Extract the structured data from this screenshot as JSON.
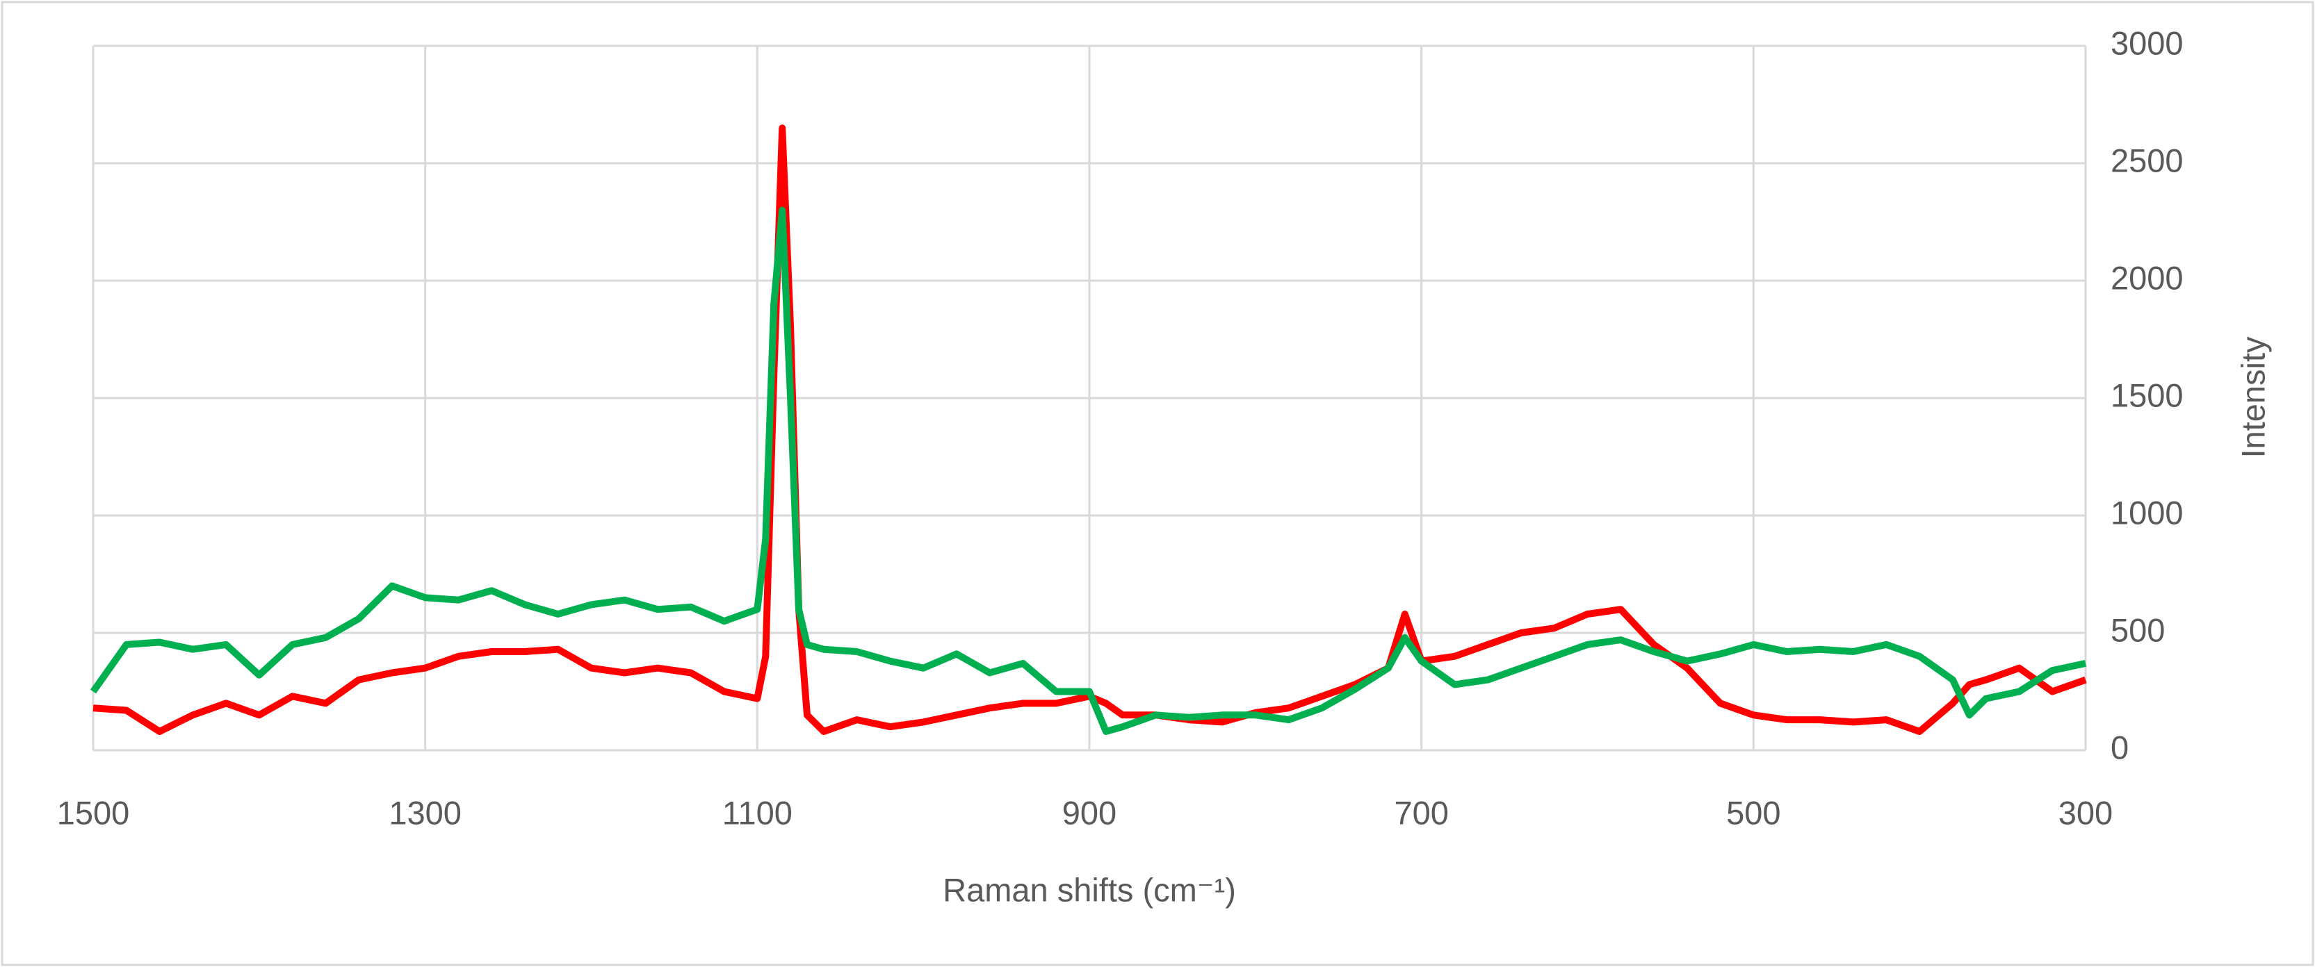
{
  "chart_data": {
    "type": "line",
    "x_label": "Raman shifts (cm⁻¹)",
    "y_label": "Intensity",
    "x": [
      1500,
      1480,
      1460,
      1440,
      1420,
      1400,
      1380,
      1360,
      1340,
      1320,
      1300,
      1280,
      1260,
      1240,
      1220,
      1200,
      1180,
      1160,
      1140,
      1120,
      1100,
      1095,
      1090,
      1085,
      1080,
      1075,
      1070,
      1060,
      1040,
      1020,
      1000,
      980,
      960,
      940,
      920,
      900,
      890,
      880,
      860,
      840,
      820,
      800,
      780,
      760,
      740,
      720,
      710,
      700,
      680,
      660,
      640,
      620,
      600,
      580,
      560,
      540,
      520,
      500,
      480,
      460,
      440,
      420,
      400,
      380,
      370,
      360,
      340,
      320,
      300
    ],
    "series": [
      {
        "color": "#ff0000",
        "values": [
          180,
          170,
          80,
          150,
          200,
          150,
          230,
          200,
          300,
          330,
          350,
          400,
          420,
          420,
          430,
          350,
          330,
          350,
          330,
          250,
          220,
          400,
          1600,
          2650,
          1800,
          600,
          150,
          80,
          130,
          100,
          120,
          150,
          180,
          200,
          200,
          230,
          200,
          150,
          150,
          130,
          120,
          160,
          180,
          230,
          280,
          350,
          580,
          380,
          400,
          450,
          500,
          520,
          580,
          600,
          450,
          350,
          200,
          150,
          130,
          130,
          120,
          130,
          80,
          200,
          280,
          300,
          350,
          250,
          300
        ]
      },
      {
        "color": "#00b050",
        "values": [
          250,
          450,
          460,
          430,
          450,
          320,
          450,
          480,
          560,
          700,
          650,
          640,
          680,
          620,
          580,
          620,
          640,
          600,
          610,
          550,
          600,
          900,
          1900,
          2300,
          1500,
          600,
          450,
          430,
          420,
          380,
          350,
          410,
          330,
          370,
          250,
          250,
          80,
          100,
          150,
          140,
          150,
          150,
          130,
          180,
          260,
          350,
          480,
          380,
          280,
          300,
          350,
          400,
          450,
          470,
          420,
          380,
          410,
          450,
          420,
          430,
          420,
          450,
          400,
          300,
          150,
          220,
          250,
          340,
          370
        ]
      }
    ],
    "xlim": [
      1500,
      300
    ],
    "xticks": [
      1500,
      1300,
      1100,
      900,
      700,
      500,
      300
    ],
    "ylim": [
      0,
      3000
    ],
    "yticks": [
      0,
      500,
      1000,
      1500,
      2000,
      2500,
      3000
    ],
    "y_axis_side": "right",
    "grid": true
  }
}
